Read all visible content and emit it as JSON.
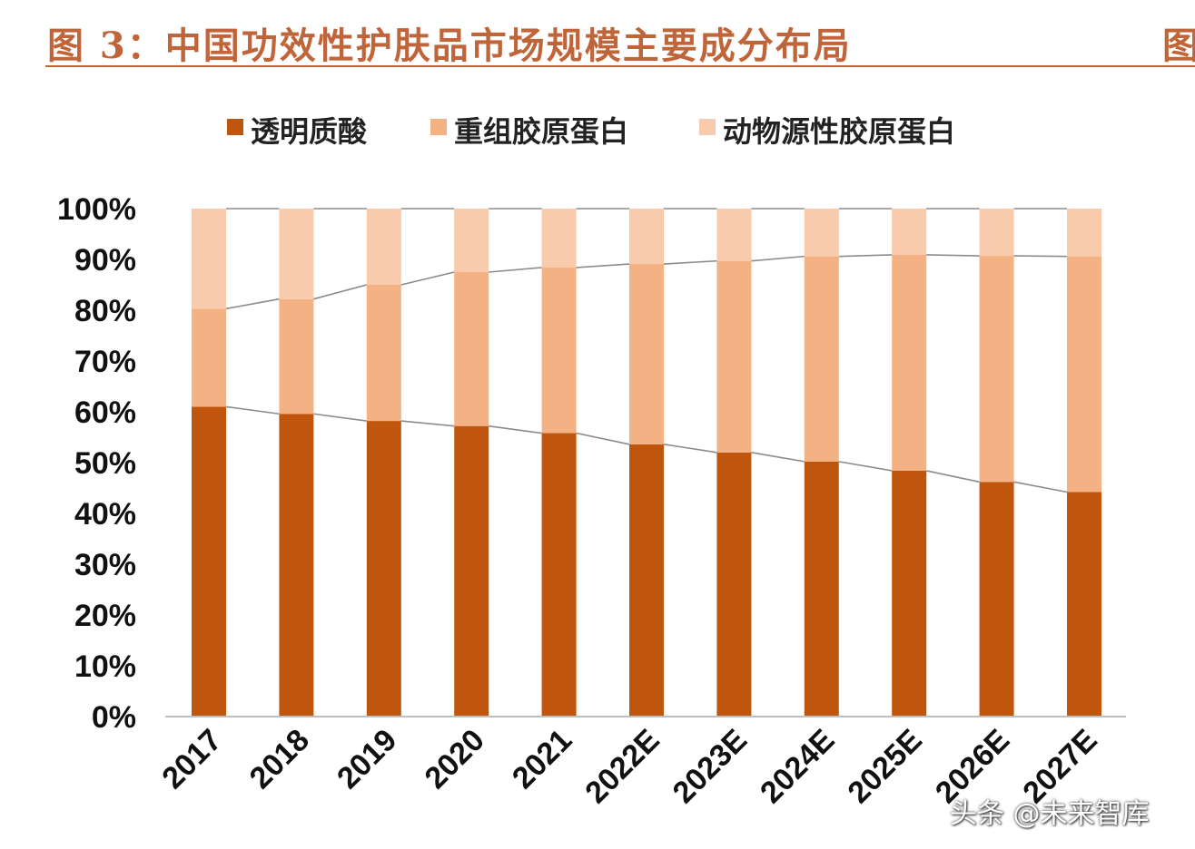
{
  "header": {
    "title": "图 3：中国功效性护肤品市场规模主要成分布局",
    "title_clipped": "图"
  },
  "watermark": "头条 @未来智库",
  "colors": {
    "hyaluronic": "#c0560e",
    "recombinant": "#f4b183",
    "animal": "#f8cbad",
    "connector": "#8c8c8c",
    "title": "#c0653a"
  },
  "chart_data": {
    "type": "bar",
    "stacked": true,
    "categories": [
      "2017",
      "2018",
      "2019",
      "2020",
      "2021",
      "2022E",
      "2023E",
      "2024E",
      "2025E",
      "2026E",
      "2027E"
    ],
    "series": [
      {
        "name": "透明质酸",
        "values": [
          61,
          59.6,
          58.2,
          57.2,
          55.8,
          53.6,
          52,
          50.2,
          48.4,
          46.2,
          44.2
        ]
      },
      {
        "name": "重组胶原蛋白",
        "values": [
          19.3,
          22.6,
          26.8,
          30.3,
          32.6,
          35.5,
          37.7,
          40.4,
          42.5,
          44.5,
          46.4
        ]
      },
      {
        "name": "动物源性胶原蛋白",
        "values": [
          19.7,
          17.8,
          15,
          12.5,
          11.6,
          10.9,
          10.3,
          9.4,
          9.1,
          9.3,
          9.4
        ]
      }
    ],
    "ylim": [
      0,
      100
    ],
    "yticks": [
      "0%",
      "10%",
      "20%",
      "30%",
      "40%",
      "50%",
      "60%",
      "70%",
      "80%",
      "90%",
      "100%"
    ],
    "series_lines": true,
    "legend_position": "top",
    "grid": false
  }
}
